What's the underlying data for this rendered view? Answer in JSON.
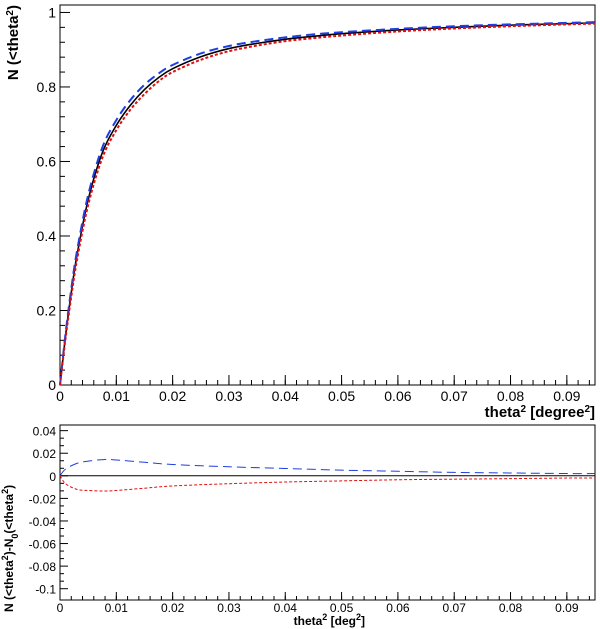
{
  "chart_data": [
    {
      "type": "line",
      "xlabel": "theta",
      "xlabel_sup": "2",
      "xlabel_rest": " [degree",
      "xlabel_sup2": "2",
      "xlabel_end": "]",
      "ylabel": "N (<theta",
      "ylabel_sup": "2",
      "ylabel_end": ")",
      "xlim": [
        0,
        0.095
      ],
      "ylim": [
        0,
        1.02
      ],
      "x_ticks": [
        0,
        0.01,
        0.02,
        0.03,
        0.04,
        0.05,
        0.06,
        0.07,
        0.08,
        0.09
      ],
      "x_tick_labels": [
        "0",
        "0.01",
        "0.02",
        "0.03",
        "0.04",
        "0.05",
        "0.06",
        "0.07",
        "0.08",
        "0.09"
      ],
      "y_ticks": [
        0,
        0.2,
        0.4,
        0.6,
        0.8,
        1
      ],
      "y_tick_labels": [
        "0",
        "0.2",
        "0.4",
        "0.6",
        "0.8",
        "1"
      ],
      "legend": "none",
      "grid": false,
      "series": [
        {
          "color": "#000000",
          "style": "solid",
          "x": [
            0,
            0.001,
            0.002,
            0.003,
            0.005,
            0.0075,
            0.01,
            0.0125,
            0.015,
            0.0175,
            0.02,
            0.025,
            0.03,
            0.035,
            0.04,
            0.045,
            0.05,
            0.06,
            0.07,
            0.08,
            0.09,
            0.095
          ],
          "y": [
            0,
            0.134,
            0.248,
            0.347,
            0.497,
            0.623,
            0.697,
            0.751,
            0.793,
            0.825,
            0.849,
            0.881,
            0.903,
            0.917,
            0.928,
            0.936,
            0.943,
            0.953,
            0.96,
            0.966,
            0.97,
            0.972
          ]
        },
        {
          "color": "#1f3fe0",
          "style": "dashed",
          "x": [
            0,
            0.001,
            0.002,
            0.003,
            0.005,
            0.0075,
            0.01,
            0.0125,
            0.015,
            0.0175,
            0.02,
            0.025,
            0.03,
            0.035,
            0.04,
            0.045,
            0.05,
            0.06,
            0.07,
            0.08,
            0.09,
            0.095
          ],
          "y": [
            0,
            0.14,
            0.258,
            0.358,
            0.51,
            0.637,
            0.711,
            0.765,
            0.806,
            0.836,
            0.859,
            0.89,
            0.91,
            0.923,
            0.933,
            0.941,
            0.947,
            0.956,
            0.963,
            0.968,
            0.972,
            0.974
          ]
        },
        {
          "color": "#e01010",
          "style": "dotted",
          "x": [
            0,
            0.001,
            0.002,
            0.003,
            0.005,
            0.0075,
            0.01,
            0.0125,
            0.015,
            0.0175,
            0.02,
            0.025,
            0.03,
            0.035,
            0.04,
            0.045,
            0.05,
            0.06,
            0.07,
            0.08,
            0.09,
            0.095
          ],
          "y": [
            0,
            0.127,
            0.237,
            0.334,
            0.483,
            0.609,
            0.684,
            0.739,
            0.781,
            0.815,
            0.84,
            0.873,
            0.896,
            0.911,
            0.923,
            0.931,
            0.938,
            0.949,
            0.957,
            0.963,
            0.968,
            0.97
          ]
        }
      ]
    },
    {
      "type": "line",
      "xlabel": "theta",
      "xlabel_sup": "2",
      "xlabel_rest": " [deg",
      "xlabel_sup2": "2",
      "xlabel_end": "]",
      "ylabel": "N (<theta",
      "ylabel_sup": "2",
      "ylabel_mid": ")-N",
      "ylabel_sub": "0",
      "ylabel_mid2": "(<theta",
      "ylabel_sup2": "2",
      "ylabel_end": ")",
      "xlim": [
        0,
        0.095
      ],
      "ylim": [
        -0.11,
        0.045
      ],
      "x_ticks": [
        0,
        0.01,
        0.02,
        0.03,
        0.04,
        0.05,
        0.06,
        0.07,
        0.08,
        0.09
      ],
      "x_tick_labels": [
        "0",
        "0.01",
        "0.02",
        "0.03",
        "0.04",
        "0.05",
        "0.06",
        "0.07",
        "0.08",
        "0.09"
      ],
      "y_ticks": [
        0.04,
        0.02,
        0,
        -0.02,
        -0.04,
        -0.06,
        -0.08,
        -0.1
      ],
      "y_tick_labels": [
        "0.04",
        "0.02",
        "0",
        "-0.02",
        "-0.04",
        "-0.06",
        "-0.08",
        "-0.1"
      ],
      "legend": "none",
      "grid": false,
      "series": [
        {
          "color": "#000000",
          "style": "solid",
          "x": [
            0,
            0.095
          ],
          "y": [
            0,
            0
          ]
        },
        {
          "color": "#1f3fe0",
          "style": "dashed",
          "x": [
            0,
            0.001,
            0.003,
            0.005,
            0.008,
            0.01,
            0.015,
            0.02,
            0.03,
            0.04,
            0.05,
            0.06,
            0.07,
            0.08,
            0.09,
            0.095
          ],
          "y": [
            0,
            0.006,
            0.011,
            0.013,
            0.0145,
            0.014,
            0.012,
            0.01,
            0.008,
            0.0065,
            0.005,
            0.004,
            0.003,
            0.0025,
            0.002,
            0.002
          ]
        },
        {
          "color": "#e01010",
          "style": "dotted",
          "x": [
            0,
            0.001,
            0.003,
            0.005,
            0.008,
            0.01,
            0.015,
            0.02,
            0.03,
            0.04,
            0.05,
            0.06,
            0.07,
            0.08,
            0.09,
            0.095
          ],
          "y": [
            0,
            -0.007,
            -0.012,
            -0.013,
            -0.0135,
            -0.013,
            -0.011,
            -0.009,
            -0.007,
            -0.0055,
            -0.0045,
            -0.0035,
            -0.003,
            -0.0025,
            -0.002,
            -0.002
          ]
        }
      ]
    }
  ]
}
